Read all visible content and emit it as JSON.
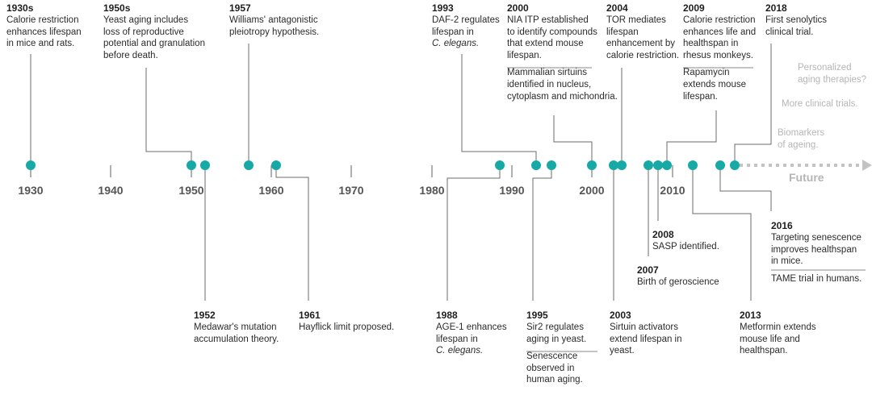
{
  "axis": {
    "ticks": [
      "1930",
      "1940",
      "1950",
      "1960",
      "1970",
      "1980",
      "1990",
      "2000",
      "2010"
    ],
    "future_label": "Future",
    "colors": {
      "axis_dark": "#8a8a8a",
      "axis_light": "#d6d6d6",
      "marker": "#17a9a6",
      "future": "#c3c3c3"
    }
  },
  "events": [
    {
      "year": "1930s",
      "text": "Calorie restriction\nenhances lifespan\nin mice and rats."
    },
    {
      "year": "1950s",
      "text": "Yeast aging includes\nloss of reproductive\npotential and granulation\nbefore death."
    },
    {
      "year": "1957",
      "text": "Williams' antagonistic\npleiotropy hypothesis."
    },
    {
      "year": "1993",
      "text": "DAF-2 regulates\nlifespan in\nC. elegans."
    },
    {
      "year": "2000",
      "text": "NIA ITP established\nto identify compounds\nthat extend mouse\nlifespan.",
      "text2": "Mammalian sirtuins\nidentified in nucleus,\ncytoplasm and michondria."
    },
    {
      "year": "2004",
      "text": "TOR mediates\nlifespan\nenhancement by\ncalorie restriction."
    },
    {
      "year": "2009",
      "text": "Calorie restriction\nenhances life and\nhealthspan in\nrhesus monkeys.",
      "text2": "Rapamycin\nextends mouse\nlifespan."
    },
    {
      "year": "2018",
      "text": "First senolytics\nclinical trial."
    },
    {
      "year": "1952",
      "text": "Medawar's mutation\naccumulation theory."
    },
    {
      "year": "1961",
      "text": "Hayflick limit proposed."
    },
    {
      "year": "1988",
      "text": "AGE-1 enhances\nlifespan in\nC. elegans."
    },
    {
      "year": "1995",
      "text": "Sir2 regulates\naging in yeast.",
      "text2": "Senescence\nobserved in\nhuman aging."
    },
    {
      "year": "2003",
      "text": "Sirtuin activators\nextend lifespan in\nyeast."
    },
    {
      "year": "2007",
      "text": "Birth of geroscience"
    },
    {
      "year": "2008",
      "text": "SASP identified."
    },
    {
      "year": "2013",
      "text": "Metformin extends\nmouse life and\nhealthspan."
    },
    {
      "year": "2016",
      "text": "Targeting senescence\nimproves healthspan\nin mice.",
      "text2": "TAME trial in humans."
    }
  ],
  "future_items": [
    "Personalized\naging therapies?",
    "More clinical trials.",
    "Biomarkers\nof ageing."
  ]
}
